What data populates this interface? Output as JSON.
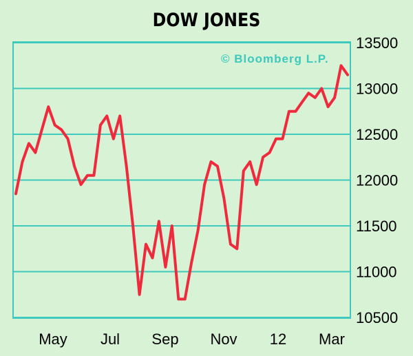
{
  "chart_data": {
    "type": "line",
    "title": "DOW JONES",
    "watermark": "© Bloomberg L.P.",
    "x_tick_labels": [
      "May",
      "Jul",
      "Sep",
      "Nov",
      "12",
      "Mar"
    ],
    "x": [
      "2011-04-01",
      "2011-04-08",
      "2011-04-15",
      "2011-04-22",
      "2011-04-29",
      "2011-05-06",
      "2011-05-13",
      "2011-05-20",
      "2011-05-27",
      "2011-06-03",
      "2011-06-10",
      "2011-06-17",
      "2011-06-24",
      "2011-07-01",
      "2011-07-08",
      "2011-07-15",
      "2011-07-22",
      "2011-07-29",
      "2011-08-05",
      "2011-08-12",
      "2011-08-19",
      "2011-08-26",
      "2011-09-02",
      "2011-09-09",
      "2011-09-16",
      "2011-09-23",
      "2011-09-30",
      "2011-10-07",
      "2011-10-14",
      "2011-10-21",
      "2011-10-28",
      "2011-11-04",
      "2011-11-11",
      "2011-11-18",
      "2011-11-25",
      "2011-12-02",
      "2011-12-09",
      "2011-12-16",
      "2011-12-23",
      "2011-12-30",
      "2012-01-06",
      "2012-01-13",
      "2012-01-20",
      "2012-01-27",
      "2012-02-03",
      "2012-02-10",
      "2012-02-17",
      "2012-02-24",
      "2012-03-02",
      "2012-03-09",
      "2012-03-16",
      "2012-03-23"
    ],
    "series": [
      {
        "values": [
          11850,
          12200,
          12400,
          12300,
          12550,
          12800,
          12600,
          12550,
          12450,
          12150,
          11950,
          12050,
          12050,
          12600,
          12700,
          12450,
          12700,
          12150,
          11500,
          10750,
          11300,
          11150,
          11550,
          11050,
          11500,
          10700,
          10700,
          11100,
          11450,
          11950,
          12200,
          12150,
          11800,
          11300,
          11250,
          12100,
          12200,
          11950,
          12250,
          12300,
          12450,
          12450,
          12750,
          12750,
          12850,
          12950,
          12900,
          13000,
          12800,
          12900,
          13250,
          13150
        ]
      }
    ],
    "ylim": [
      10500,
      13500
    ],
    "y_ticks": [
      10500,
      11000,
      11500,
      12000,
      12500,
      13000,
      13500
    ],
    "grid": true,
    "colors": {
      "line": "#ee2a3c",
      "grid": "#3dc9bb",
      "background": "#d8f2d6",
      "watermark": "#3dc9bb"
    }
  }
}
